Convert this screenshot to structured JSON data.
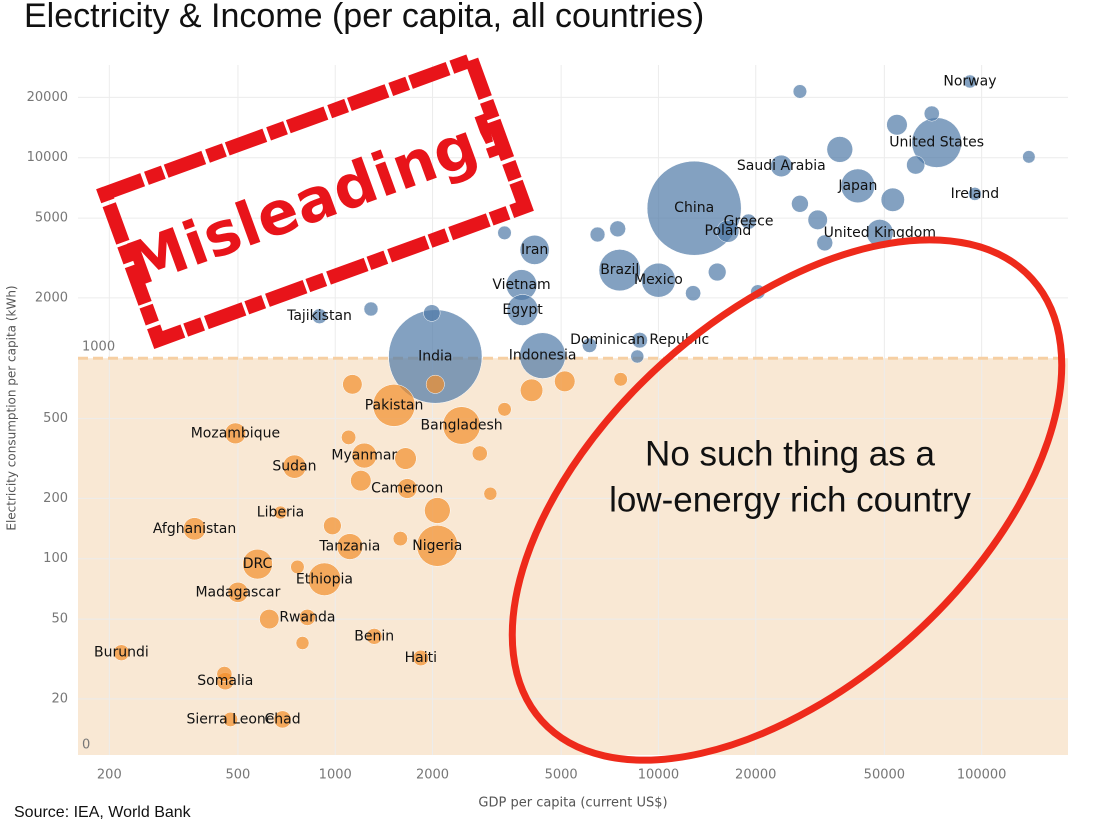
{
  "chart_data": {
    "type": "bubble",
    "title": "Electricity & Income (per capita, all countries)",
    "x_label": "GDP per capita (current US$)",
    "y_label": "Electricity consumption per capita (kWh)",
    "source": "Source: IEA, World Bank",
    "log_x": true,
    "log_y": true,
    "grid": true,
    "xlim": [
      160,
      185000
    ],
    "ylim": [
      10.5,
      29000
    ],
    "xticks": [
      200,
      500,
      1000,
      2000,
      5000,
      10000,
      20000,
      50000,
      100000
    ],
    "yticks": [
      20,
      50,
      100,
      200,
      500,
      2000,
      5000,
      10000,
      20000
    ],
    "reference_band": {
      "from": 0,
      "to": 1000,
      "color": "#f9e8d4",
      "line_color": "#f6cfa3"
    },
    "stamp": {
      "text": "Misleading!",
      "color": "#e8141a"
    },
    "annotation": {
      "lines": [
        "No such thing as a",
        "low-energy rich country"
      ],
      "color": "#ee2a1b"
    },
    "series": [
      {
        "color": "#4e79a7",
        "labels": [
          "Norway",
          "United States",
          "Saudi Arabia",
          "Japan",
          "Ireland",
          "China",
          "Greece",
          "Poland",
          "United Kingdom",
          "Iran",
          "Brazil",
          "Mexico",
          "Vietnam",
          "Tajikistan",
          "Egypt",
          "Dominican Republic",
          "India",
          "Indonesia",
          null,
          null,
          null,
          null,
          null,
          null,
          null,
          null,
          null,
          null,
          null,
          null,
          null,
          null,
          null,
          null,
          null,
          null,
          null,
          null
        ],
        "x": [
          92000,
          72600,
          24000,
          41400,
          95300,
          12900,
          19000,
          16400,
          48400,
          4140,
          7590,
          10000,
          3770,
          894,
          3800,
          8750,
          2040,
          4380,
          27400,
          70100,
          54700,
          36400,
          62500,
          140000,
          27400,
          31100,
          53100,
          15200,
          20300,
          7480,
          3340,
          6480,
          1990,
          1290,
          6120,
          8600,
          12800,
          32700
        ],
        "values": [
          24000,
          11900,
          9100,
          7240,
          6600,
          5600,
          4800,
          4300,
          4220,
          3470,
          2750,
          2450,
          2320,
          1620,
          1740,
          1230,
          1020,
          1030,
          21400,
          16600,
          14600,
          11000,
          9200,
          10100,
          5890,
          4900,
          6170,
          2690,
          2140,
          4420,
          4220,
          4140,
          1680,
          1760,
          1160,
          1020,
          2110,
          3760
        ],
        "sizes": [
          5,
          330,
          35,
          126,
          5,
          1400,
          10,
          38,
          67,
          85,
          212,
          128,
          97,
          9,
          100,
          11,
          1380,
          270,
          6,
          10,
          30,
          60,
          20,
          4,
          15,
          25,
          45,
          18,
          8,
          12,
          6,
          9,
          14,
          7,
          8,
          5,
          10,
          12
        ]
      },
      {
        "color": "#f28e2b",
        "labels": [
          "Pakistan",
          "Bangladesh",
          "Mozambique",
          "Sudan",
          "Myanmar",
          "Cameroon",
          "Liberia",
          "Afghanistan",
          "Tanzania",
          "Nigeria",
          "DRC",
          "Ethiopia",
          "Madagascar",
          "Rwanda",
          "Benin",
          "Haiti",
          "Burundi",
          "Somalia",
          "Sierra Leone",
          "Chad",
          null,
          null,
          null,
          null,
          null,
          null,
          null,
          null,
          null,
          null,
          null,
          null,
          null,
          null,
          null,
          null,
          null,
          null
        ],
        "x": [
          1520,
          2460,
          491,
          748,
          1230,
          1670,
          677,
          367,
          1110,
          2070,
          575,
          926,
          500,
          820,
          1320,
          1840,
          218,
          457,
          474,
          687,
          1130,
          2040,
          5130,
          4050,
          7640,
          3340,
          2800,
          3020,
          1650,
          1200,
          1100,
          980,
          1590,
          764,
          792,
          625,
          454,
          2070
        ],
        "values": [
          582,
          462,
          422,
          288,
          327,
          224,
          170,
          141,
          115,
          116,
          94,
          79,
          68,
          51,
          41,
          32,
          34,
          24.5,
          15.8,
          15.8,
          741,
          741,
          767,
          692,
          785,
          556,
          335,
          211,
          316,
          245,
          403,
          146,
          126,
          91,
          38,
          50,
          26.6,
          174
        ],
        "sizes": [
          220,
          165,
          31,
          44,
          54,
          26,
          5,
          39,
          60,
          206,
          90,
          115,
          28,
          13,
          12,
          11,
          12,
          16,
          8,
          16,
          25,
          20,
          30,
          40,
          6,
          6,
          10,
          5,
          35,
          30,
          8,
          18,
          8,
          6,
          5,
          25,
          10,
          60
        ]
      }
    ]
  }
}
